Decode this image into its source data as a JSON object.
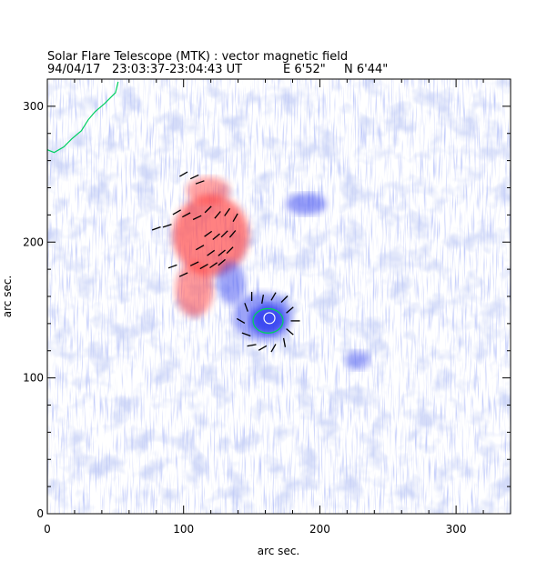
{
  "chart_data": {
    "type": "heatmap",
    "title": "Solar Flare Telescope (MTK) : vector magnetic field",
    "subtitle": {
      "date": "94/04/17",
      "time_range": "23:03:37-23:04:43 UT",
      "east": "E 6'52\"",
      "north": "N 6'44\""
    },
    "xlabel": "arc sec.",
    "ylabel": "arc sec.",
    "xlim": [
      0,
      340
    ],
    "ylim": [
      0,
      320
    ],
    "x_ticks": [
      0,
      100,
      200,
      300
    ],
    "y_ticks": [
      0,
      100,
      200,
      300
    ],
    "colors": {
      "negative_polarity": "#2f3cf0",
      "positive_polarity": "#ff3b3b",
      "contour": "#00d060",
      "vectors": "#000000"
    },
    "regions": [
      {
        "name": "positive-plage-main",
        "polarity": "positive",
        "cx": 120,
        "cy": 205,
        "rx": 28,
        "ry": 30,
        "strength": 0.75
      },
      {
        "name": "positive-plage-north",
        "polarity": "positive",
        "cx": 118,
        "cy": 238,
        "rx": 16,
        "ry": 10,
        "strength": 0.55
      },
      {
        "name": "positive-plage-tail",
        "polarity": "positive",
        "cx": 108,
        "cy": 165,
        "rx": 14,
        "ry": 20,
        "strength": 0.6
      },
      {
        "name": "negative-sunspot",
        "polarity": "negative",
        "cx": 162,
        "cy": 143,
        "rx": 13,
        "ry": 11,
        "strength": 1.0
      },
      {
        "name": "negative-penumbra",
        "polarity": "negative",
        "cx": 158,
        "cy": 145,
        "rx": 22,
        "ry": 18,
        "strength": 0.55
      },
      {
        "name": "negative-east-patch",
        "polarity": "negative",
        "cx": 135,
        "cy": 170,
        "rx": 10,
        "ry": 16,
        "strength": 0.55
      },
      {
        "name": "negative-north-patch",
        "polarity": "negative",
        "cx": 190,
        "cy": 228,
        "rx": 15,
        "ry": 8,
        "strength": 0.6
      },
      {
        "name": "negative-southwest-patch",
        "polarity": "negative",
        "cx": 228,
        "cy": 113,
        "rx": 9,
        "ry": 7,
        "strength": 0.5
      }
    ],
    "contour": {
      "label": "sunspot umbra contour",
      "cx": 162,
      "cy": 142,
      "rx": 11,
      "ry": 9,
      "inner": {
        "cx": 163,
        "cy": 144,
        "rx": 4,
        "ry": 4
      }
    },
    "limb_contour": [
      [
        0,
        268
      ],
      [
        5,
        266
      ],
      [
        12,
        270
      ],
      [
        18,
        276
      ],
      [
        25,
        282
      ],
      [
        30,
        290
      ],
      [
        35,
        296
      ],
      [
        42,
        302
      ],
      [
        50,
        310
      ],
      [
        52,
        318
      ]
    ],
    "vector_field": [
      [
        100,
        250,
        30
      ],
      [
        108,
        248,
        25
      ],
      [
        112,
        244,
        20
      ],
      [
        95,
        222,
        30
      ],
      [
        102,
        220,
        28
      ],
      [
        110,
        218,
        25
      ],
      [
        118,
        224,
        45
      ],
      [
        125,
        220,
        50
      ],
      [
        132,
        222,
        55
      ],
      [
        138,
        218,
        60
      ],
      [
        80,
        210,
        20
      ],
      [
        88,
        212,
        18
      ],
      [
        118,
        206,
        35
      ],
      [
        124,
        204,
        40
      ],
      [
        130,
        206,
        45
      ],
      [
        136,
        206,
        50
      ],
      [
        112,
        196,
        30
      ],
      [
        120,
        192,
        35
      ],
      [
        128,
        192,
        40
      ],
      [
        134,
        194,
        45
      ],
      [
        108,
        184,
        25
      ],
      [
        115,
        182,
        30
      ],
      [
        122,
        183,
        35
      ],
      [
        128,
        185,
        40
      ],
      [
        92,
        182,
        20
      ],
      [
        100,
        176,
        25
      ],
      [
        150,
        160,
        90
      ],
      [
        158,
        158,
        80
      ],
      [
        166,
        160,
        60
      ],
      [
        174,
        158,
        45
      ],
      [
        146,
        152,
        110
      ],
      [
        178,
        150,
        40
      ],
      [
        142,
        142,
        150
      ],
      [
        182,
        142,
        0
      ],
      [
        146,
        132,
        160
      ],
      [
        178,
        134,
        320
      ],
      [
        150,
        124,
        190
      ],
      [
        158,
        122,
        210
      ],
      [
        166,
        122,
        240
      ],
      [
        174,
        126,
        280
      ]
    ]
  }
}
